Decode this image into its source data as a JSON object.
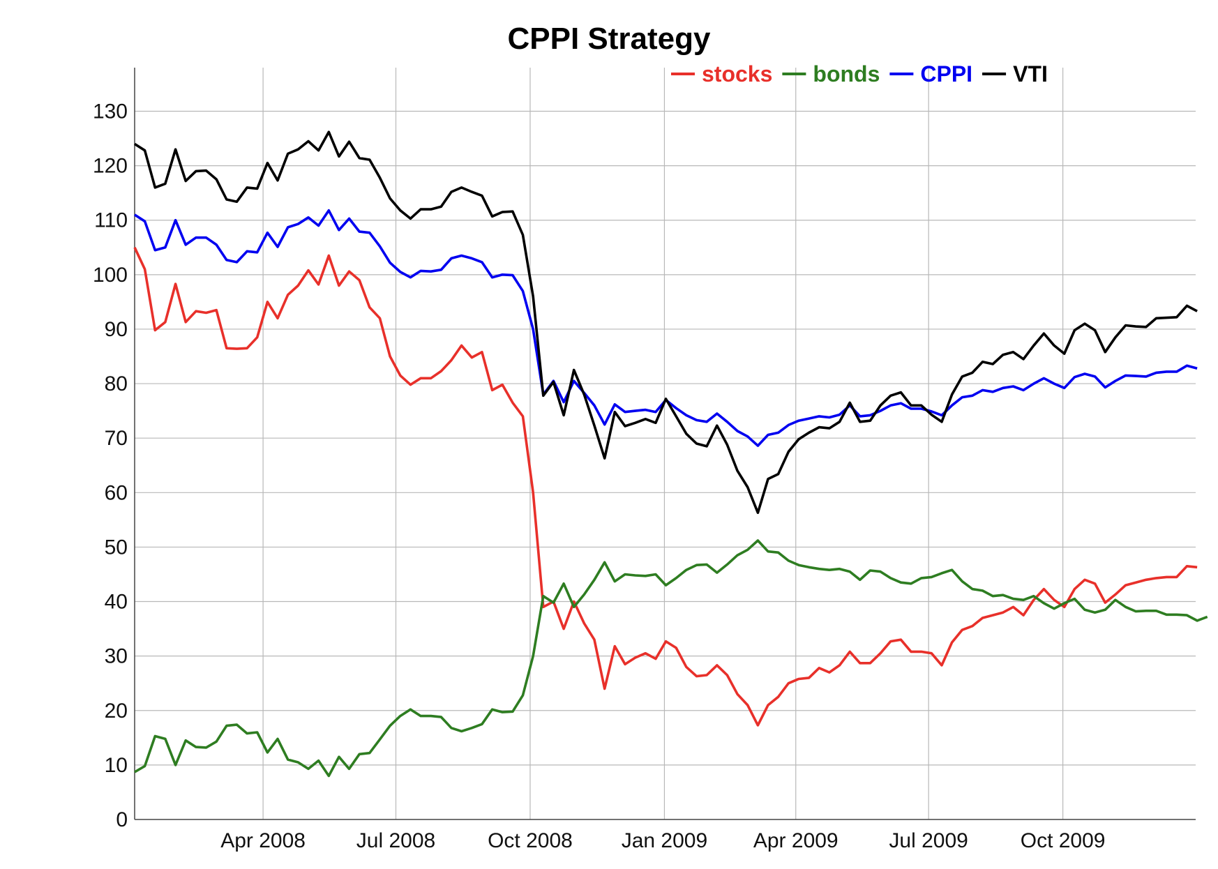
{
  "chart_data": {
    "type": "line",
    "title": "CPPI Strategy",
    "xlabel": "",
    "ylabel": "",
    "ylim": [
      0,
      138
    ],
    "yticks": [
      0,
      10,
      20,
      30,
      40,
      50,
      60,
      70,
      80,
      90,
      100,
      110,
      120,
      130
    ],
    "x_ticks": [
      {
        "date": "2008-04-01",
        "label": "Apr 2008"
      },
      {
        "date": "2008-07-01",
        "label": "Jul 2008"
      },
      {
        "date": "2008-10-01",
        "label": "Oct 2008"
      },
      {
        "date": "2009-01-01",
        "label": "Jan 2009"
      },
      {
        "date": "2009-04-01",
        "label": "Apr 2009"
      },
      {
        "date": "2009-07-01",
        "label": "Jul 2009"
      },
      {
        "date": "2009-10-01",
        "label": "Oct 2009"
      }
    ],
    "xlim": [
      "2008-01-04",
      "2009-12-31"
    ],
    "x_step_days": 7,
    "grid": true,
    "legend_position": "top-right",
    "series": [
      {
        "name": "stocks",
        "color": "#e8302a",
        "values": [
          105,
          101,
          89.8,
          91.3,
          98.3,
          91.3,
          93.3,
          93,
          93.5,
          86.5,
          86.4,
          86.5,
          88.5,
          95,
          92,
          96.3,
          98,
          100.8,
          98.2,
          103.5,
          98,
          100.6,
          99,
          94,
          92,
          85,
          81.5,
          79.8,
          81,
          81,
          82.3,
          84.3,
          87,
          84.8,
          85.8,
          78.8,
          79.8,
          76.5,
          74,
          60,
          39,
          40,
          35,
          40,
          36,
          33,
          24,
          31.8,
          28.5,
          29.7,
          30.5,
          29.5,
          32.7,
          31.5,
          28,
          26.3,
          26.5,
          28.3,
          26.5,
          23,
          21,
          17.3,
          21,
          22.5,
          25,
          25.8,
          26,
          27.8,
          27,
          28.3,
          30.8,
          28.7,
          28.7,
          30.5,
          32.7,
          33,
          30.8,
          30.8,
          30.5,
          28.3,
          32.5,
          34.8,
          35.5,
          37,
          37.5,
          38,
          39,
          37.5,
          40.3,
          42.3,
          40.3,
          39,
          42.3,
          44,
          43.3,
          39.8,
          41.3,
          43,
          43.5,
          44,
          44.3,
          44.5,
          44.5,
          46.5,
          46.3
        ]
      },
      {
        "name": "bonds",
        "color": "#2e7d21",
        "values": [
          8.7,
          9.8,
          15.3,
          14.8,
          10,
          14.5,
          13.3,
          13.2,
          14.3,
          17.2,
          17.4,
          15.8,
          16,
          12.3,
          14.8,
          11,
          10.5,
          9.3,
          10.8,
          8,
          11.5,
          9.3,
          12,
          12.2,
          14.7,
          17.2,
          19,
          20.2,
          19,
          19,
          18.8,
          16.8,
          16.2,
          16.8,
          17.5,
          20.2,
          19.7,
          19.8,
          22.8,
          30,
          41,
          39.8,
          43.3,
          39,
          41.3,
          44,
          47.2,
          43.7,
          45,
          44.8,
          44.7,
          45,
          43,
          44.3,
          45.8,
          46.7,
          46.8,
          45.3,
          46.8,
          48.5,
          49.5,
          51.2,
          49.2,
          49,
          47.5,
          46.7,
          46.3,
          46,
          45.8,
          46,
          45.5,
          44,
          45.7,
          45.5,
          44.3,
          43.5,
          43.3,
          44.3,
          44.5,
          45.2,
          45.8,
          43.7,
          42.3,
          42,
          41,
          41.2,
          40.5,
          40.3,
          41,
          39.7,
          38.7,
          39.7,
          40.5,
          38.5,
          38,
          38.5,
          40.3,
          39,
          38.2,
          38.3,
          38.3,
          37.6,
          37.6,
          37.5,
          36.5,
          37.2
        ]
      },
      {
        "name": "CPPI",
        "color": "#0000f0",
        "values": [
          111,
          109.8,
          104.5,
          105,
          110,
          105.5,
          106.8,
          106.8,
          105.5,
          102.7,
          102.3,
          104.3,
          104.1,
          107.7,
          105.1,
          108.7,
          109.3,
          110.5,
          109,
          111.8,
          108.2,
          110.3,
          107.9,
          107.7,
          105.2,
          102.2,
          100.5,
          99.5,
          100.7,
          100.6,
          100.9,
          103,
          103.5,
          103,
          102.3,
          99.5,
          100,
          99.9,
          97,
          90,
          78,
          80.5,
          76.6,
          80.5,
          78.3,
          76,
          72.5,
          76.2,
          74.8,
          75,
          75.2,
          74.8,
          77,
          75.5,
          74.2,
          73.3,
          73,
          74.5,
          73,
          71.3,
          70.3,
          68.6,
          70.6,
          71,
          72.4,
          73.2,
          73.6,
          74,
          73.8,
          74.3,
          76,
          74,
          74.2,
          75,
          76,
          76.4,
          75.4,
          75.4,
          74.9,
          74.2,
          76,
          77.5,
          77.8,
          78.8,
          78.5,
          79.2,
          79.5,
          78.8,
          80,
          81,
          80,
          79.2,
          81.2,
          81.8,
          81.3,
          79.3,
          80.5,
          81.5,
          81.4,
          81.3,
          82,
          82.2,
          82.2,
          83.3,
          82.8
        ]
      },
      {
        "name": "VTI",
        "color": "#000000",
        "values": [
          124,
          122.8,
          116,
          116.7,
          123,
          117.2,
          119,
          119.1,
          117.5,
          113.8,
          113.4,
          116,
          115.8,
          120.5,
          117.3,
          122.2,
          123,
          124.5,
          122.8,
          126.2,
          121.7,
          124.4,
          121.4,
          121.1,
          117.8,
          114,
          111.8,
          110.3,
          112,
          112,
          112.5,
          115.2,
          116,
          115.2,
          114.5,
          110.7,
          111.5,
          111.6,
          107.3,
          96,
          77.8,
          80.3,
          74.2,
          82.5,
          78,
          72.3,
          66.3,
          74.8,
          72.2,
          72.8,
          73.5,
          72.8,
          77.2,
          74,
          70.8,
          69,
          68.5,
          72.3,
          68.8,
          64,
          61,
          56.3,
          62.5,
          63.4,
          67.5,
          69.8,
          71,
          72,
          71.8,
          73,
          76.5,
          73,
          73.2,
          76,
          77.8,
          78.4,
          76,
          76,
          74.3,
          73,
          78,
          81.3,
          82,
          84,
          83.6,
          85.3,
          85.8,
          84.5,
          87,
          89.2,
          87,
          85.5,
          89.8,
          91,
          89.8,
          85.8,
          88.5,
          90.7,
          90.5,
          90.4,
          92,
          92.1,
          92.2,
          94.3,
          93.3
        ]
      }
    ]
  }
}
